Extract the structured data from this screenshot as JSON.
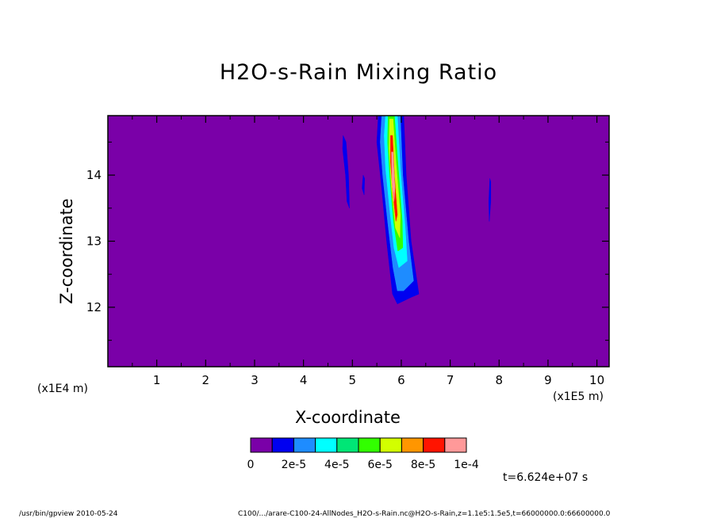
{
  "chart_data": {
    "type": "heatmap",
    "title": "H2O-s-Rain Mixing Ratio",
    "xlabel": "X-coordinate",
    "ylabel": "Z-coordinate",
    "x_unit_label": "(x1E5 m)",
    "y_unit_label": "(x1E4 m)",
    "xlim": [
      0,
      10.25
    ],
    "ylim": [
      11.1,
      14.9
    ],
    "x_ticks": [
      1,
      2,
      3,
      4,
      5,
      6,
      7,
      8,
      9,
      10
    ],
    "y_ticks": [
      12,
      13,
      14
    ],
    "background_level": 0,
    "color_scale": {
      "colors": [
        "#7a00a8",
        "#0000f0",
        "#1e8cff",
        "#00ffff",
        "#00e676",
        "#32ff00",
        "#d2ff00",
        "#ff9600",
        "#ff1400",
        "#ff9999"
      ],
      "tick_labels": [
        "0",
        "2e-5",
        "4e-5",
        "6e-5",
        "8e-5",
        "1e-4"
      ],
      "range": [
        0,
        0.0001
      ]
    },
    "features": [
      {
        "level": 1,
        "polygon": [
          [
            4.81,
            14.6
          ],
          [
            4.87,
            14.5
          ],
          [
            4.92,
            14.0
          ],
          [
            4.94,
            13.5
          ],
          [
            4.89,
            13.6
          ],
          [
            4.86,
            14.0
          ],
          [
            4.8,
            14.4
          ]
        ]
      },
      {
        "level": 1,
        "polygon": [
          [
            5.22,
            14.0
          ],
          [
            5.25,
            13.95
          ],
          [
            5.24,
            13.7
          ],
          [
            5.2,
            13.8
          ]
        ]
      },
      {
        "level": 1,
        "polygon": [
          [
            7.81,
            13.95
          ],
          [
            7.83,
            13.9
          ],
          [
            7.83,
            13.6
          ],
          [
            7.8,
            13.3
          ],
          [
            7.79,
            13.6
          ]
        ]
      },
      {
        "level": 1,
        "polygon": [
          [
            5.53,
            14.9
          ],
          [
            6.05,
            14.9
          ],
          [
            6.1,
            14.0
          ],
          [
            6.2,
            13.0
          ],
          [
            6.36,
            12.2
          ],
          [
            6.2,
            12.15
          ],
          [
            5.92,
            12.05
          ],
          [
            5.82,
            12.2
          ],
          [
            5.7,
            13.0
          ],
          [
            5.6,
            13.8
          ],
          [
            5.5,
            14.5
          ]
        ]
      },
      {
        "level": 2,
        "polygon": [
          [
            5.6,
            14.9
          ],
          [
            5.98,
            14.9
          ],
          [
            6.03,
            14.0
          ],
          [
            6.15,
            13.0
          ],
          [
            6.25,
            12.4
          ],
          [
            6.05,
            12.25
          ],
          [
            5.92,
            12.25
          ],
          [
            5.83,
            12.6
          ],
          [
            5.72,
            13.3
          ],
          [
            5.62,
            14.0
          ],
          [
            5.57,
            14.5
          ]
        ]
      },
      {
        "level": 3,
        "polygon": [
          [
            5.68,
            14.9
          ],
          [
            5.92,
            14.9
          ],
          [
            5.98,
            14.1
          ],
          [
            6.08,
            13.2
          ],
          [
            6.12,
            12.7
          ],
          [
            5.95,
            12.6
          ],
          [
            5.85,
            12.9
          ],
          [
            5.76,
            13.5
          ],
          [
            5.68,
            14.1
          ],
          [
            5.65,
            14.6
          ]
        ]
      },
      {
        "level": 5,
        "polygon": [
          [
            5.73,
            14.9
          ],
          [
            5.86,
            14.9
          ],
          [
            5.93,
            14.2
          ],
          [
            6.02,
            13.3
          ],
          [
            6.03,
            12.9
          ],
          [
            5.93,
            12.85
          ],
          [
            5.84,
            13.3
          ],
          [
            5.76,
            14.0
          ],
          [
            5.72,
            14.5
          ]
        ]
      },
      {
        "level": 6,
        "polygon": [
          [
            5.76,
            14.85
          ],
          [
            5.83,
            14.85
          ],
          [
            5.89,
            14.2
          ],
          [
            5.98,
            13.4
          ],
          [
            5.97,
            13.05
          ],
          [
            5.88,
            13.2
          ],
          [
            5.8,
            13.8
          ],
          [
            5.75,
            14.4
          ]
        ]
      },
      {
        "level": 8,
        "polygon": [
          [
            5.78,
            14.6
          ],
          [
            5.82,
            14.6
          ],
          [
            5.86,
            14.0
          ],
          [
            5.92,
            13.4
          ],
          [
            5.89,
            13.3
          ],
          [
            5.83,
            13.7
          ],
          [
            5.78,
            14.2
          ]
        ]
      },
      {
        "level": 9,
        "polygon": [
          [
            5.8,
            14.35
          ],
          [
            5.83,
            14.35
          ],
          [
            5.87,
            13.8
          ],
          [
            5.85,
            13.6
          ],
          [
            5.81,
            13.9
          ]
        ]
      }
    ]
  },
  "time_label": "t=6.624e+07 s",
  "footer_left": "/usr/bin/gpview  2010-05-24",
  "footer_right": "C100/.../arare-C100-24-AllNodes_H2O-s-Rain.nc@H2O-s-Rain,z=1.1e5:1.5e5,t=66000000.0:66600000.0"
}
